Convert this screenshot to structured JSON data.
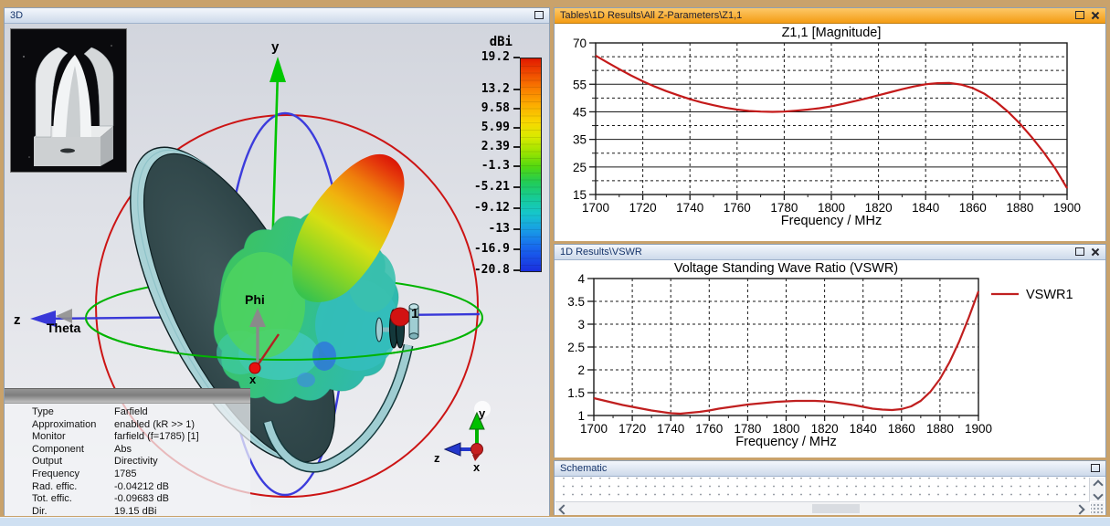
{
  "panels": {
    "viewport3d": {
      "title": "3D",
      "colorbar": {
        "unit": "dBi",
        "max_value": 19.2,
        "min_value": -20.8,
        "labels": [
          "19.2",
          "13.2",
          "9.58",
          "5.99",
          "2.39",
          "-1.3",
          "-5.21",
          "-9.12",
          "-13",
          "-16.9",
          "-20.8"
        ]
      },
      "labels": {
        "y": "y",
        "z": "z",
        "x": "x",
        "theta": "Theta",
        "phi": "Phi",
        "port": "1"
      },
      "triad": {
        "x": "x",
        "y": "y",
        "z": "z"
      },
      "info_table": {
        "rows": [
          {
            "label": "Type",
            "value": "Farfield"
          },
          {
            "label": "Approximation",
            "value": "enabled (kR >> 1)"
          },
          {
            "label": "Monitor",
            "value": "farfield (f=1785) [1]"
          },
          {
            "label": "Component",
            "value": "Abs"
          },
          {
            "label": "Output",
            "value": "Directivity"
          },
          {
            "label": "Frequency",
            "value": "1785"
          },
          {
            "label": "Rad. effic.",
            "value": "-0.04212 dB"
          },
          {
            "label": "Tot. effic.",
            "value": "-0.09683 dB"
          },
          {
            "label": "Dir.",
            "value": "19.15 dBi"
          }
        ]
      }
    },
    "z_params": {
      "title": "Tables\\1D Results\\All Z-Parameters\\Z1,1"
    },
    "vswr": {
      "title": "1D Results\\VSWR"
    },
    "schematic": {
      "title": "Schematic"
    }
  },
  "colors": {
    "active_titlebar": "#f49c14",
    "curve_red": "#c41a1a",
    "legend_red": "#c02020"
  },
  "chart_data": [
    {
      "type": "line",
      "title": "Z1,1 [Magnitude]",
      "xlabel": "Frequency / MHz",
      "ylabel": "",
      "xlim": [
        1700,
        1900
      ],
      "ylim": [
        15,
        70
      ],
      "x_ticks": [
        1700,
        1720,
        1740,
        1760,
        1780,
        1800,
        1820,
        1840,
        1860,
        1880,
        1900
      ],
      "x_minor_step": 10,
      "y_major_ticks": [
        15,
        25,
        35,
        45,
        55,
        70
      ],
      "y_minor_ticks": [
        20,
        30,
        40,
        50,
        60,
        65
      ],
      "y_major_style": "solid",
      "grid": true,
      "legend": null,
      "series": [
        {
          "name": "Z1,1",
          "color": "#c41a1a",
          "x": [
            1700,
            1705,
            1710,
            1715,
            1720,
            1725,
            1730,
            1735,
            1740,
            1745,
            1750,
            1755,
            1760,
            1765,
            1770,
            1775,
            1780,
            1785,
            1790,
            1795,
            1800,
            1805,
            1810,
            1815,
            1820,
            1825,
            1830,
            1835,
            1840,
            1845,
            1850,
            1855,
            1860,
            1865,
            1870,
            1875,
            1880,
            1885,
            1890,
            1895,
            1900
          ],
          "y": [
            65.4,
            62.9,
            60.5,
            58.2,
            56.1,
            54.2,
            52.5,
            51.0,
            49.6,
            48.4,
            47.4,
            46.5,
            45.8,
            45.3,
            45.1,
            45.0,
            45.1,
            45.4,
            45.8,
            46.3,
            47.0,
            47.9,
            48.9,
            49.9,
            51.0,
            52.1,
            53.2,
            54.2,
            55.0,
            55.4,
            55.5,
            54.9,
            53.6,
            51.5,
            48.6,
            45.0,
            40.7,
            35.8,
            30.4,
            24.4,
            17.3
          ]
        }
      ]
    },
    {
      "type": "line",
      "title": "Voltage Standing Wave Ratio (VSWR)",
      "xlabel": "Frequency / MHz",
      "ylabel": "",
      "xlim": [
        1700,
        1900
      ],
      "ylim": [
        1,
        4
      ],
      "x_ticks": [
        1700,
        1720,
        1740,
        1760,
        1780,
        1800,
        1820,
        1840,
        1860,
        1880,
        1900
      ],
      "x_minor_step": 10,
      "y_major_ticks": [
        1,
        1.5,
        2,
        2.5,
        3,
        3.5,
        4
      ],
      "y_minor_ticks": [],
      "y_major_style": "dashed",
      "grid": true,
      "legend": {
        "label": "VSWR1",
        "color": "#c02020",
        "position": "right-top"
      },
      "series": [
        {
          "name": "VSWR1",
          "color": "#c01f1f",
          "x": [
            1700,
            1705,
            1710,
            1715,
            1720,
            1725,
            1730,
            1735,
            1740,
            1745,
            1750,
            1755,
            1760,
            1765,
            1770,
            1775,
            1780,
            1785,
            1790,
            1795,
            1800,
            1805,
            1810,
            1815,
            1820,
            1825,
            1830,
            1835,
            1840,
            1845,
            1850,
            1855,
            1860,
            1865,
            1870,
            1875,
            1880,
            1885,
            1890,
            1895,
            1900
          ],
          "y": [
            1.38,
            1.33,
            1.28,
            1.23,
            1.19,
            1.15,
            1.11,
            1.08,
            1.05,
            1.04,
            1.06,
            1.08,
            1.11,
            1.15,
            1.18,
            1.21,
            1.24,
            1.26,
            1.28,
            1.3,
            1.31,
            1.32,
            1.32,
            1.32,
            1.31,
            1.29,
            1.26,
            1.23,
            1.19,
            1.15,
            1.13,
            1.12,
            1.14,
            1.2,
            1.32,
            1.52,
            1.8,
            2.17,
            2.62,
            3.15,
            3.72
          ]
        }
      ]
    }
  ]
}
